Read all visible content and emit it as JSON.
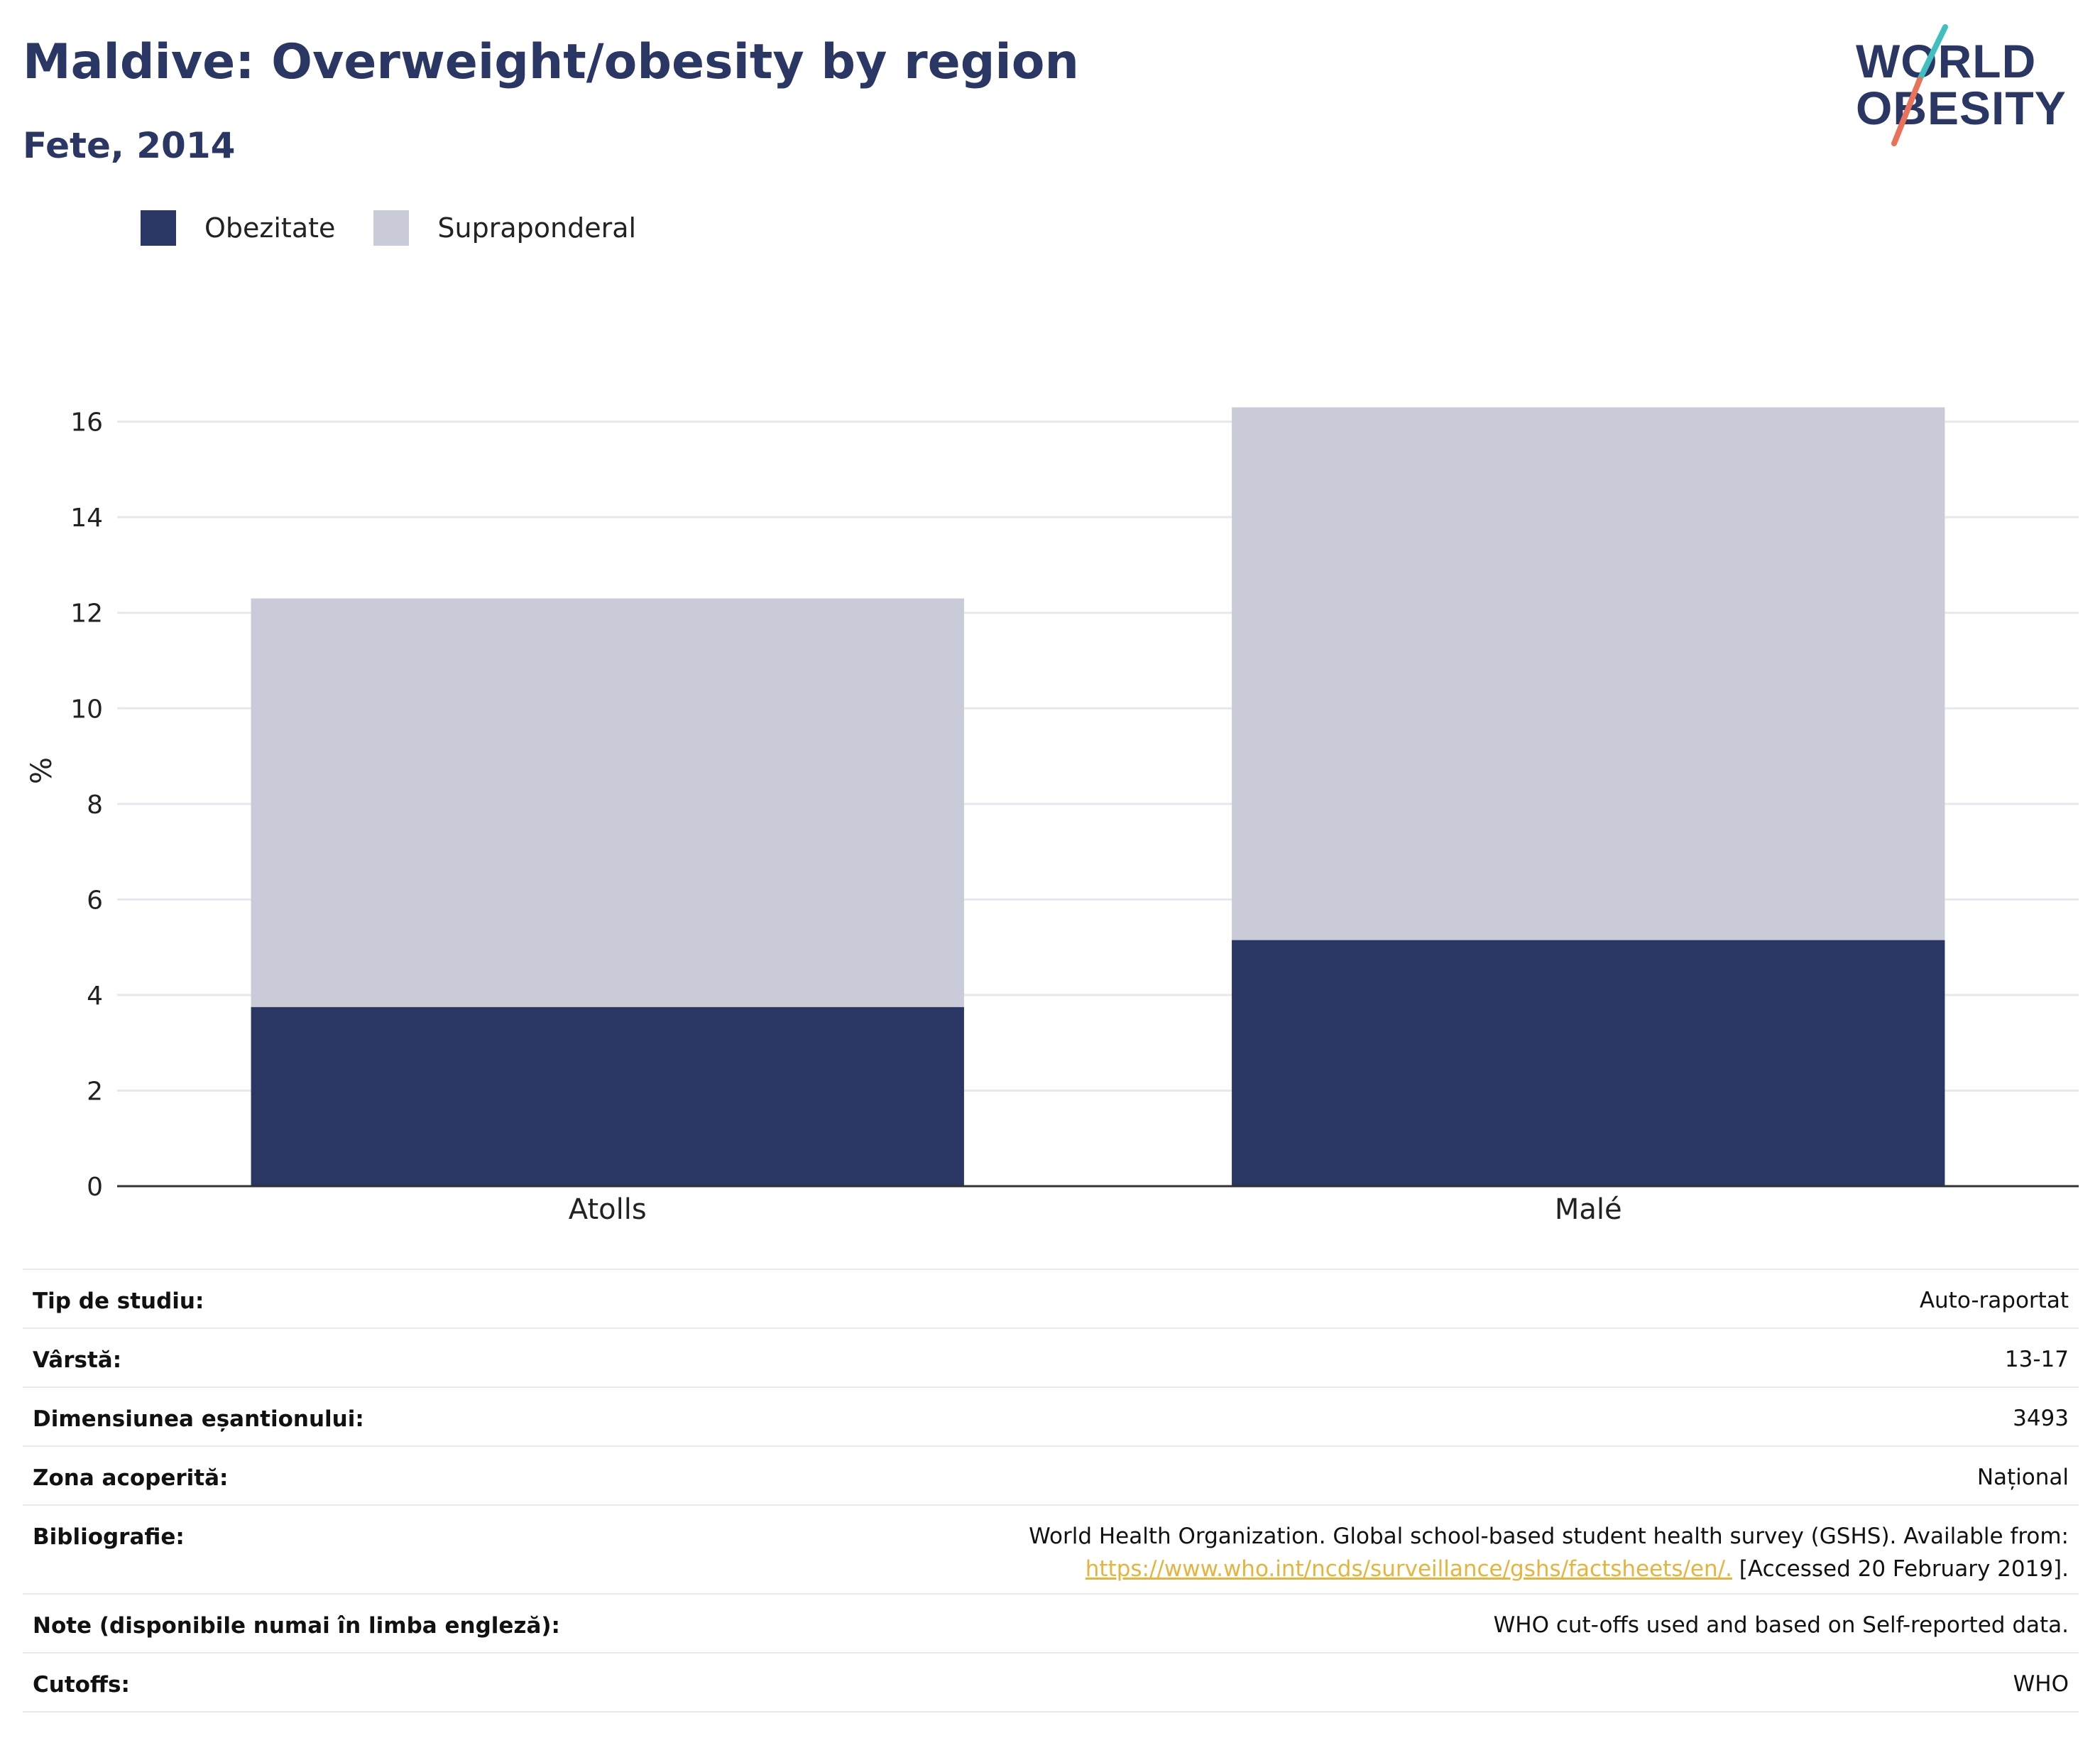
{
  "header": {
    "title": "Maldive: Overweight/obesity by region",
    "subtitle": "Fete, 2014"
  },
  "logo": {
    "line1": "WORLD",
    "line2": "OBESITY",
    "colors": {
      "text": "#2a3663",
      "slash_top": "#3fbfbf",
      "slash_bottom": "#e8735a"
    }
  },
  "colors": {
    "obezitate": "#2a3663",
    "supraponderal": "#c9ccd8",
    "grid": "#e6e8ee",
    "axis": "#333333"
  },
  "chart_data": {
    "type": "bar",
    "stacked": true,
    "categories": [
      "Atolls",
      "Malé"
    ],
    "series": [
      {
        "name": "Obezitate",
        "values": [
          3.75,
          5.15
        ]
      },
      {
        "name": "Supraponderal",
        "values": [
          8.55,
          11.15
        ]
      }
    ],
    "totals": [
      12.3,
      16.3
    ],
    "ylabel": "%",
    "ylim": [
      0,
      16.5
    ],
    "yticks": [
      0,
      2,
      4,
      6,
      8,
      10,
      12,
      14,
      16
    ],
    "grid": true,
    "legend_position": "top-left"
  },
  "meta": [
    {
      "label": "Tip de studiu:",
      "value": "Auto-raportat"
    },
    {
      "label": "Vârstă:",
      "value": "13-17"
    },
    {
      "label": "Dimensiunea eșantionului:",
      "value": "3493"
    },
    {
      "label": "Zona acoperită:",
      "value": "Național"
    },
    {
      "label": "Bibliografie:",
      "value_line1": "World Health Organization. Global school-based student health survey (GSHS). Available from:",
      "link": "https://www.who.int/ncds/surveillance/gshs/factsheets/en/.",
      "value_suffix": " [Accessed 20 February 2019]."
    },
    {
      "label": "Note (disponibile numai în limba engleză):",
      "value": "WHO cut-offs used and based on Self-reported data."
    },
    {
      "label": "Cutoffs:",
      "value": "WHO"
    }
  ]
}
